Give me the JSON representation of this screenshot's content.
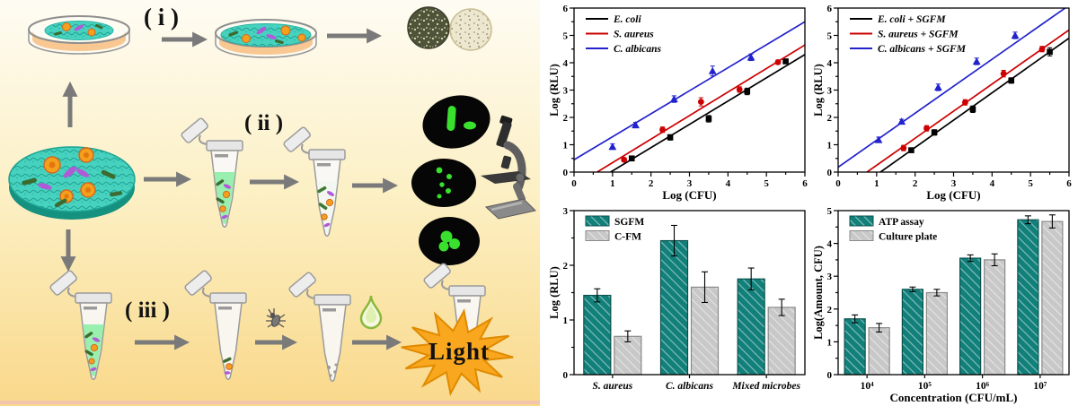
{
  "diagram": {
    "steps": [
      "( i )",
      "( ii )",
      "( iii )"
    ],
    "light_label": "Light",
    "colors": {
      "background_top": "#fefcf3",
      "background_mid": "#fcefc2",
      "background_bottom": "#f9d88a",
      "arrow": "#7a7a7a",
      "membrane_teal": "#46d2bf",
      "agar_peach": "#f8c792",
      "starburst_orange": "#f8a71e",
      "fluorescent_green": "#39e12e",
      "droplet_green": "#8ab83d"
    }
  },
  "chart_data": [
    {
      "type": "scatter",
      "title": "",
      "xlabel": "Log (CFU)",
      "ylabel": "Log (RLU)",
      "xlim": [
        0,
        6
      ],
      "ylim": [
        0,
        6
      ],
      "xticks": [
        0,
        1,
        2,
        3,
        4,
        5,
        6
      ],
      "yticks": [
        0,
        1,
        2,
        3,
        4,
        5,
        6
      ],
      "minor_step": 0.5,
      "grid": false,
      "legend_position": "top-left",
      "legend_italic": true,
      "series": [
        {
          "name": "E. coli",
          "color": "#000000",
          "marker": "square",
          "points": [
            [
              1.5,
              0.5
            ],
            [
              2.5,
              1.27
            ],
            [
              3.5,
              1.95
            ],
            [
              4.5,
              2.95
            ],
            [
              5.5,
              4.05
            ]
          ],
          "errors": [
            0.08,
            0.1,
            0.12,
            0.12,
            0.08
          ],
          "fit_line": [
            [
              0.95,
              0
            ],
            [
              6,
              4.3
            ]
          ]
        },
        {
          "name": "S. aureus",
          "color": "#cc0000",
          "marker": "circle",
          "points": [
            [
              1.3,
              0.45
            ],
            [
              2.3,
              1.55
            ],
            [
              3.3,
              2.57
            ],
            [
              4.3,
              3.02
            ],
            [
              5.3,
              4.02
            ]
          ],
          "errors": [
            0.07,
            0.1,
            0.15,
            0.1,
            0.08
          ],
          "fit_line": [
            [
              0.6,
              0
            ],
            [
              6,
              4.65
            ]
          ]
        },
        {
          "name": "C. albicans",
          "color": "#2222cc",
          "marker": "triangle",
          "points": [
            [
              1.0,
              0.93
            ],
            [
              1.6,
              1.72
            ],
            [
              2.6,
              2.67
            ],
            [
              3.6,
              3.7
            ],
            [
              4.6,
              4.2
            ]
          ],
          "errors": [
            0.1,
            0.1,
            0.12,
            0.18,
            0.12
          ],
          "fit_line": [
            [
              0,
              0.45
            ],
            [
              6,
              5.5
            ]
          ]
        }
      ]
    },
    {
      "type": "scatter",
      "title": "",
      "xlabel": "Log (CFU)",
      "ylabel": "Log (RLU)",
      "xlim": [
        0,
        6
      ],
      "ylim": [
        0,
        6
      ],
      "xticks": [
        0,
        1,
        2,
        3,
        4,
        5,
        6
      ],
      "yticks": [
        0,
        1,
        2,
        3,
        4,
        5,
        6
      ],
      "minor_step": 0.5,
      "grid": false,
      "legend_position": "top-left",
      "legend_italic": true,
      "series": [
        {
          "name": "E. coli + SGFM",
          "color": "#000000",
          "marker": "square",
          "points": [
            [
              1.9,
              0.8
            ],
            [
              2.5,
              1.45
            ],
            [
              3.5,
              2.3
            ],
            [
              4.5,
              3.35
            ],
            [
              5.5,
              4.4
            ]
          ],
          "errors": [
            0.08,
            0.1,
            0.12,
            0.1,
            0.15
          ],
          "fit_line": [
            [
              1.1,
              0
            ],
            [
              6,
              4.9
            ]
          ]
        },
        {
          "name": "S. aureus + SGFM",
          "color": "#cc0000",
          "marker": "circle",
          "points": [
            [
              1.7,
              0.88
            ],
            [
              2.3,
              1.6
            ],
            [
              3.3,
              2.55
            ],
            [
              4.3,
              3.6
            ],
            [
              5.3,
              4.5
            ]
          ],
          "errors": [
            0.1,
            0.1,
            0.1,
            0.12,
            0.1
          ],
          "fit_line": [
            [
              0.75,
              0
            ],
            [
              6,
              5.2
            ]
          ]
        },
        {
          "name": "C. albicans + SGFM",
          "color": "#2222cc",
          "marker": "triangle",
          "points": [
            [
              1.05,
              1.18
            ],
            [
              1.65,
              1.85
            ],
            [
              2.6,
              3.1
            ],
            [
              3.6,
              4.05
            ],
            [
              4.6,
              5.0
            ]
          ],
          "errors": [
            0.1,
            0.08,
            0.12,
            0.12,
            0.12
          ],
          "fit_line": [
            [
              0,
              0.18
            ],
            [
              6,
              6.1
            ]
          ]
        }
      ]
    },
    {
      "type": "bar",
      "title": "",
      "xlabel": "",
      "ylabel": "Log (RLU)",
      "ylim": [
        0,
        3
      ],
      "yticks": [
        0,
        1,
        2,
        3
      ],
      "minor_step": 0.5,
      "grid": false,
      "legend_position": "top-left",
      "legend_italic": false,
      "category_style": "italic",
      "categories": [
        "S. aureus",
        "C. albicans",
        "Mixed microbes"
      ],
      "series": [
        {
          "name": "SGFM",
          "color": "#12807a",
          "edge": "#07514d",
          "values": [
            1.45,
            2.45,
            1.75
          ],
          "errors": [
            0.12,
            0.28,
            0.2
          ]
        },
        {
          "name": "C-FM",
          "color": "#c8c8c8",
          "edge": "#8a8a8a",
          "values": [
            0.7,
            1.6,
            1.23
          ],
          "errors": [
            0.1,
            0.28,
            0.15
          ]
        }
      ]
    },
    {
      "type": "bar",
      "title": "",
      "xlabel": "Concentration (CFU/mL)",
      "ylabel": "Log(Amount, CFU)",
      "ylim": [
        0,
        5
      ],
      "yticks": [
        0,
        1,
        2,
        3,
        4,
        5
      ],
      "minor_step": 0.5,
      "grid": false,
      "legend_position": "top-left",
      "legend_italic": false,
      "category_style": "normal",
      "categories": [
        "10⁴",
        "10⁵",
        "10⁶",
        "10⁷"
      ],
      "series": [
        {
          "name": "ATP assay",
          "color": "#12807a",
          "edge": "#07514d",
          "values": [
            1.7,
            2.6,
            3.55,
            4.72
          ],
          "errors": [
            0.12,
            0.07,
            0.1,
            0.12
          ]
        },
        {
          "name": "Culture plate",
          "color": "#c8c8c8",
          "edge": "#8a8a8a",
          "values": [
            1.43,
            2.5,
            3.5,
            4.67
          ],
          "errors": [
            0.13,
            0.1,
            0.18,
            0.2
          ]
        }
      ]
    }
  ]
}
